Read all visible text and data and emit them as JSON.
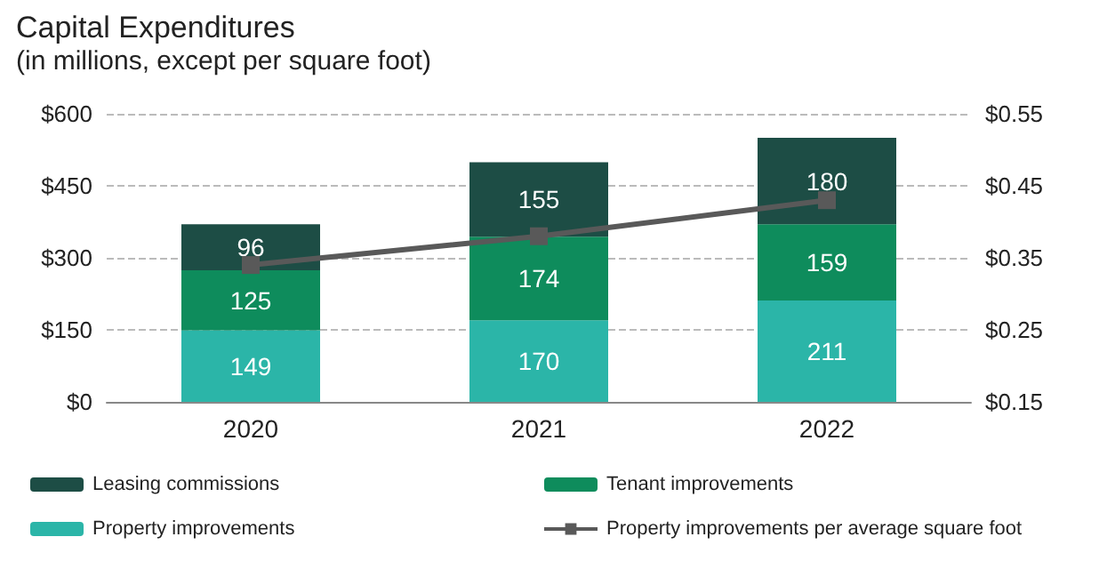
{
  "chart_data": {
    "type": "bar",
    "title": "Capital Expenditures",
    "subtitle": "(in millions, except per square foot)",
    "categories": [
      "2020",
      "2021",
      "2022"
    ],
    "stacked": true,
    "grid": "y",
    "legend": "bottom",
    "series": [
      {
        "name": "Property improvements",
        "color": "#2bb5a8",
        "values": [
          149,
          170,
          211
        ],
        "value_labels": [
          "149",
          "170",
          "211"
        ]
      },
      {
        "name": "Tenant improvements",
        "color": "#0e8c5c",
        "values": [
          125,
          174,
          159
        ],
        "value_labels": [
          "125",
          "174",
          "159"
        ]
      },
      {
        "name": "Leasing commissions",
        "color": "#1d4d45",
        "values": [
          96,
          155,
          180
        ],
        "value_labels": [
          "96",
          "155",
          "180"
        ]
      },
      {
        "name": "Property improvements per average square foot",
        "type": "line",
        "axis": "y2",
        "color": "#595959",
        "marker": "square",
        "values": [
          0.34,
          0.38,
          0.43
        ]
      }
    ],
    "ylim": [
      0,
      600
    ],
    "yticks": [
      {
        "value": 0,
        "label": "$0"
      },
      {
        "value": 150,
        "label": "$150"
      },
      {
        "value": 300,
        "label": "$300"
      },
      {
        "value": 450,
        "label": "$450"
      },
      {
        "value": 600,
        "label": "$600"
      }
    ],
    "y2lim": [
      0.15,
      0.55
    ],
    "y2ticks": [
      {
        "value": 0.15,
        "label": "$0.15"
      },
      {
        "value": 0.25,
        "label": "$0.25"
      },
      {
        "value": 0.35,
        "label": "$0.35"
      },
      {
        "value": 0.45,
        "label": "$0.45"
      },
      {
        "value": 0.55,
        "label": "$0.55"
      }
    ]
  }
}
